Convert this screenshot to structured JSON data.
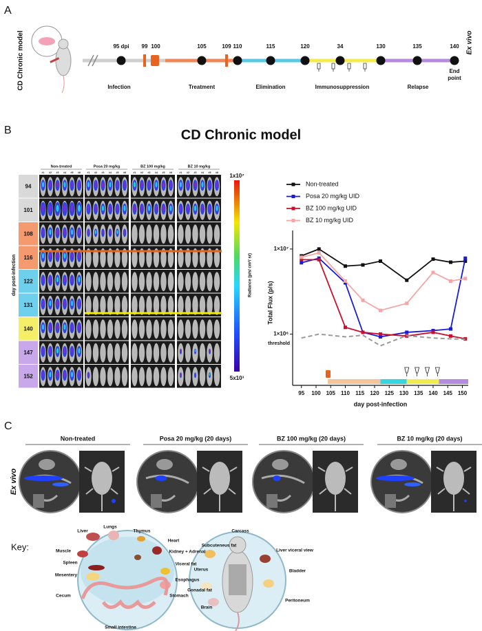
{
  "panels": {
    "a": "A",
    "b": "B",
    "c": "C"
  },
  "timeline": {
    "model": "CD Chronic model",
    "ticks": [
      "95 dpi",
      "99",
      "100",
      "105",
      "109",
      "110",
      "115",
      "120",
      "34",
      "130",
      "135",
      "140"
    ],
    "end": [
      "End",
      "point"
    ],
    "ex_vivo": "Ex vivo",
    "phases": [
      "Infection",
      "Treatment",
      "Elimination",
      "Immunosuppression",
      "Relapse"
    ]
  },
  "b_title": "CD Chronic model",
  "imaging": {
    "groups": [
      "Non-treated",
      "Posa 20 mg/kg",
      "BZ 100 mg/kg",
      "BZ 10 mg/kg"
    ],
    "mice": [
      "#1",
      "#2",
      "#3",
      "#4",
      "#5",
      "#6"
    ],
    "days": [
      "94",
      "101",
      "108",
      "116",
      "122",
      "131",
      "140",
      "147",
      "152"
    ],
    "y_label": "day post-infection",
    "colorbar_label": "Radiance (p/s/ cm²/ sr)",
    "colorbar_max": "1x10⁷",
    "colorbar_min": "5x10³"
  },
  "chart_data": {
    "type": "line",
    "x": [
      95,
      101,
      110,
      116,
      122,
      131,
      140,
      146,
      151
    ],
    "series": [
      {
        "name": "Non-treated",
        "color": "#111111",
        "values": [
          8300000,
          10000000,
          6300000,
          6500000,
          7200000,
          4300000,
          7600000,
          7000000,
          7200000
        ]
      },
      {
        "name": "Posa 20 mg/kg UID",
        "color": "#1a1adb",
        "values": [
          6900000,
          7800000,
          4000000,
          1050000,
          930000,
          1050000,
          1100000,
          1150000,
          7800000
        ]
      },
      {
        "name": "BZ 100 mg/kg UID",
        "color": "#c8102e",
        "values": [
          7500000,
          7500000,
          1200000,
          1050000,
          1000000,
          950000,
          1050000,
          950000,
          880000
        ]
      },
      {
        "name": "BZ 10 mg/kg UID",
        "color": "#f4a6a6",
        "values": [
          8000000,
          9000000,
          4200000,
          2500000,
          1900000,
          2300000,
          5300000,
          4200000,
          4500000
        ]
      },
      {
        "name": "threshold",
        "color": "#999999",
        "dashed": true,
        "values": [
          900000,
          1000000,
          930000,
          970000,
          730000,
          960000,
          900000,
          880000,
          870000
        ]
      }
    ],
    "xlim": [
      92,
      152
    ],
    "xticks": [
      95,
      100,
      105,
      110,
      115,
      120,
      125,
      130,
      135,
      140,
      145,
      150
    ],
    "ylim": [
      250000,
      16500000
    ],
    "yticks": [
      {
        "value": 1000000,
        "label": "1×10⁶"
      },
      {
        "value": 10000000,
        "label": "1×10⁷"
      }
    ],
    "log_y": true,
    "x_label": "day post-infection",
    "y_label": "Total Flux (p/s)"
  },
  "ex_vivo": {
    "label": "Ex vivo",
    "groups": [
      "Non-treated",
      "Posa 20 mg/kg (20 days)",
      "BZ 100 mg/kg (20 days)",
      "BZ 10 mg/kg (20 days)"
    ]
  },
  "key": {
    "title": "Key:",
    "organs_left": [
      "Liver",
      "Lungs",
      "Thymus",
      "Heart",
      "Muscle",
      "Kidney + Adrenal",
      "Spleen",
      "Viceral fat",
      "Mesentery",
      "Esophagus",
      "Cecum",
      "Stomach",
      "Small intestine"
    ],
    "organs_right": [
      "Carcass",
      "Subcuteneus fat",
      "Liver viceral view",
      "Uterus",
      "Bladder",
      "Gonadal fat",
      "Brain",
      "Peritoneum"
    ]
  }
}
